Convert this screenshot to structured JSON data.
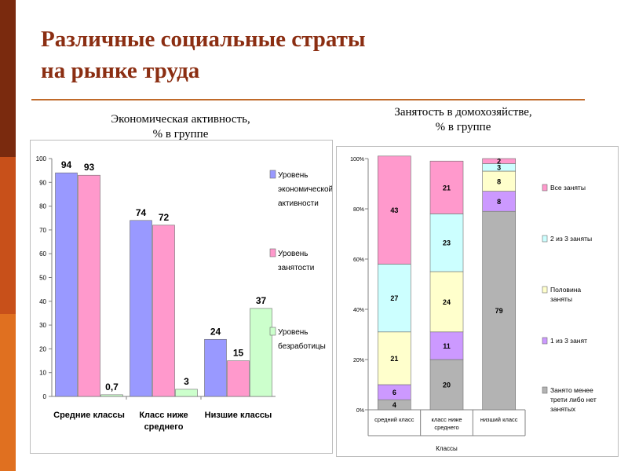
{
  "slide": {
    "title_lines": [
      "Различные социальные страты",
      "на рынке труда"
    ],
    "colors": {
      "accent": "#8b2e12",
      "rule": "#c06a2a",
      "sidebar": [
        "#7a2a0e",
        "#c8501a",
        "#e07020"
      ]
    }
  },
  "chart_data": [
    {
      "type": "bar",
      "title_lines": [
        "Экономическая активность,",
        "% в группе"
      ],
      "categories": [
        [
          "Средние классы"
        ],
        [
          "Класс ниже",
          "среднего"
        ],
        [
          "Низшие классы"
        ]
      ],
      "series": [
        {
          "name_lines": [
            "Уровень",
            "экономической",
            "активности"
          ],
          "values": [
            94,
            74,
            24
          ],
          "labels": [
            "94",
            "74",
            "24"
          ],
          "color": "#9999ff"
        },
        {
          "name_lines": [
            "Уровень",
            "занятости"
          ],
          "values": [
            93,
            72,
            15
          ],
          "labels": [
            "93",
            "72",
            "15"
          ],
          "color": "#ff99cc"
        },
        {
          "name_lines": [
            "Уровень",
            "безработицы"
          ],
          "values": [
            0.7,
            3,
            37
          ],
          "labels": [
            "0,7",
            "3",
            "37"
          ],
          "color": "#ccffcc"
        }
      ],
      "ylim": [
        0,
        100
      ],
      "yticks": [
        0,
        10,
        20,
        30,
        40,
        50,
        60,
        70,
        80,
        90,
        100
      ],
      "grid": false,
      "legend": "right"
    },
    {
      "type": "bar",
      "stacked": "percent",
      "title_lines": [
        "Занятость в домохозяйстве,",
        "% в группе"
      ],
      "categories": [
        "средний класс",
        "класс ниже среднего",
        "низший класс"
      ],
      "xlabel": "Классы",
      "series": [
        {
          "name": "Занято менее трети либо нет занятых",
          "values": [
            4,
            20,
            79
          ],
          "color": "#b3b3b3"
        },
        {
          "name": "1 из 3 занят",
          "values": [
            6,
            11,
            8
          ],
          "color": "#cc99ff"
        },
        {
          "name": "Половина заняты",
          "values": [
            21,
            24,
            8
          ],
          "color": "#ffffcc"
        },
        {
          "name": "2 из 3 заняты",
          "values": [
            27,
            23,
            3
          ],
          "color": "#ccffff"
        },
        {
          "name": "Все заняты",
          "values": [
            43,
            21,
            2
          ],
          "color": "#ff99cc"
        }
      ],
      "legend_order": [
        4,
        3,
        2,
        1,
        0
      ],
      "legend_lines": [
        [
          "Все заняты"
        ],
        [
          "2 из 3 заняты"
        ],
        [
          "Половина",
          "заняты"
        ],
        [
          "1 из 3 занят"
        ],
        [
          "Занято менее",
          "трети либо нет",
          "занятых"
        ]
      ],
      "ylim": [
        0,
        100
      ],
      "yticks": [
        "0%",
        "20%",
        "40%",
        "60%",
        "80%",
        "100%"
      ],
      "grid": false,
      "legend": "right"
    }
  ]
}
